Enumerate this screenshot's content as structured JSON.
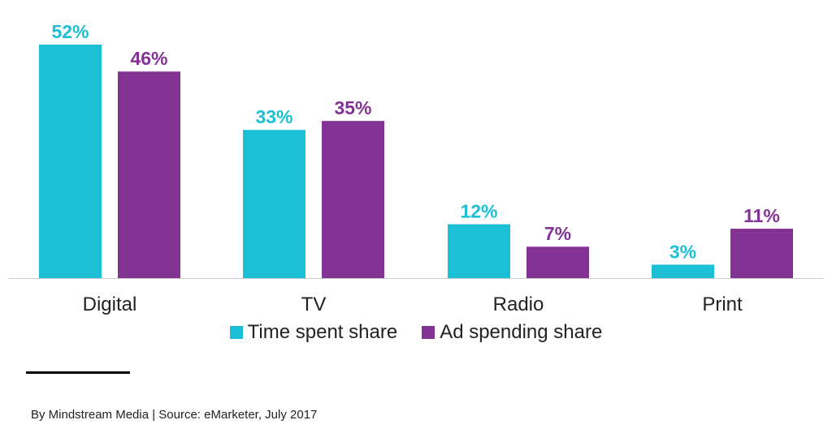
{
  "chart_data": {
    "type": "bar",
    "categories": [
      "Digital",
      "TV",
      "Radio",
      "Print"
    ],
    "series": [
      {
        "name": "Time spent share",
        "values": [
          52,
          33,
          12,
          3
        ],
        "color": "#1bbfd6"
      },
      {
        "name": "Ad spending share",
        "values": [
          46,
          35,
          7,
          11
        ],
        "color": "#833394"
      }
    ],
    "value_suffix": "%",
    "ylim": [
      0,
      52
    ],
    "grid": false,
    "legend_position": "bottom"
  },
  "legend": {
    "time_label": "Time spent share",
    "ad_label": "Ad spending share",
    "time_color": "#1bbfd6",
    "ad_color": "#833394"
  },
  "footer": {
    "source": "By Mindstream Media | Source: eMarketer, July 2017"
  }
}
